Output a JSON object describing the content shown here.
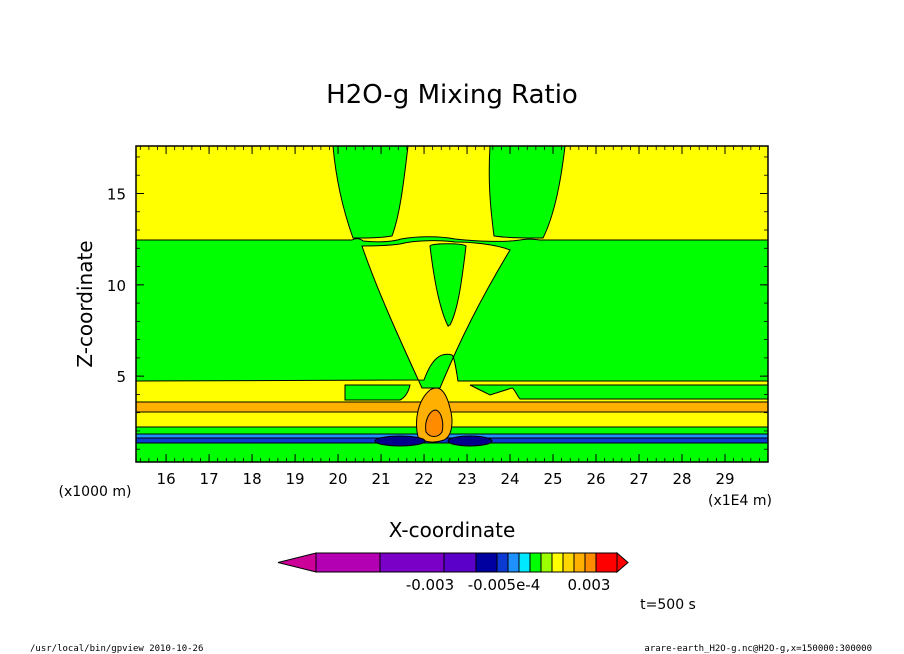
{
  "chart_data": {
    "type": "heatmap",
    "title": "H2O-g Mixing Ratio",
    "xlabel": "X-coordinate",
    "ylabel": "Z-coordinate",
    "x_unit_left": "(x1000 m)",
    "x_unit_right": "(x1E4 m)",
    "xlim": [
      15.3,
      30.0
    ],
    "ylim": [
      0.3,
      17.6
    ],
    "x_ticks": [
      "16",
      "17",
      "18",
      "19",
      "20",
      "21",
      "22",
      "23",
      "24",
      "25",
      "26",
      "27",
      "28",
      "29"
    ],
    "y_ticks": [
      "5",
      "10",
      "15"
    ],
    "time_label": "t=500 s",
    "colorbar": {
      "labels": [
        "-0.003",
        "-0.005e-4",
        "0.003"
      ],
      "colors": [
        "#cc0099",
        "#b300b3",
        "#7a00c8",
        "#5a00c8",
        "#0000a0",
        "#0a3ad2",
        "#1e90ff",
        "#00e8ff",
        "#00ff00",
        "#9cff00",
        "#ffff00",
        "#ffd700",
        "#ffb000",
        "#ff8c00",
        "#ff0000"
      ]
    },
    "contour_colors": {
      "green": "#00ff00",
      "yellow": "#ffff00",
      "orange": "#ffb000",
      "dark_orange": "#ff8c00",
      "blue": "#0a3ad2",
      "navy": "#00008b"
    }
  },
  "footer": {
    "left": "/usr/local/bin/gpview  2010-10-26",
    "right": "arare-earth_H2O-g.nc@H2O-g,x=150000:300000"
  }
}
